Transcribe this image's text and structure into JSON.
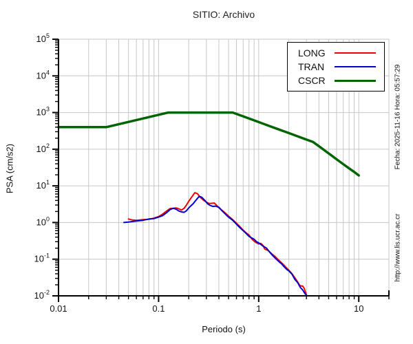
{
  "title": "SITIO: Archivo",
  "side_texts": {
    "fecha": "Fecha: 2025-11-16  Hora: 05:57:29",
    "url": "http://www.lis.ucr.ac.cr"
  },
  "colors": {
    "long": "#ee0000",
    "tran": "#0000cc",
    "cscr": "#006400",
    "grid": "#c6c6c6",
    "axis": "#000000"
  },
  "chart_data": {
    "type": "line",
    "title": "SITIO: Archivo",
    "xlabel": "Periodo (s)",
    "ylabel": "PSA (cm/s2)",
    "xscale": "log",
    "yscale": "log",
    "xlim": [
      0.01,
      20
    ],
    "ylim": [
      0.01,
      100000
    ],
    "grid": true,
    "legend_position": "top-right",
    "x_major_ticks": [
      0.01,
      0.1,
      1,
      10
    ],
    "x_tick_labels": [
      "0.01",
      "0.1",
      "1",
      "10"
    ],
    "y_tick_exponents": [
      -2,
      -1,
      0,
      1,
      2,
      3,
      4,
      5
    ],
    "series": [
      {
        "name": "LONG",
        "color": "#ee0000",
        "width": 2,
        "points": [
          [
            0.05,
            1.25
          ],
          [
            0.055,
            1.17
          ],
          [
            0.06,
            1.15
          ],
          [
            0.07,
            1.2
          ],
          [
            0.08,
            1.22
          ],
          [
            0.09,
            1.32
          ],
          [
            0.1,
            1.45
          ],
          [
            0.11,
            1.7
          ],
          [
            0.12,
            2.05
          ],
          [
            0.13,
            2.4
          ],
          [
            0.14,
            2.45
          ],
          [
            0.15,
            2.5
          ],
          [
            0.16,
            2.35
          ],
          [
            0.17,
            2.2
          ],
          [
            0.18,
            2.45
          ],
          [
            0.19,
            3.0
          ],
          [
            0.2,
            3.8
          ],
          [
            0.215,
            5.0
          ],
          [
            0.23,
            6.5
          ],
          [
            0.245,
            6.1
          ],
          [
            0.26,
            4.9
          ],
          [
            0.28,
            4.1
          ],
          [
            0.3,
            3.6
          ],
          [
            0.32,
            3.3
          ],
          [
            0.34,
            3.35
          ],
          [
            0.36,
            3.4
          ],
          [
            0.38,
            2.95
          ],
          [
            0.4,
            2.55
          ],
          [
            0.43,
            2.15
          ],
          [
            0.46,
            1.85
          ],
          [
            0.5,
            1.5
          ],
          [
            0.55,
            1.2
          ],
          [
            0.6,
            0.95
          ],
          [
            0.65,
            0.77
          ],
          [
            0.7,
            0.62
          ],
          [
            0.75,
            0.52
          ],
          [
            0.8,
            0.46
          ],
          [
            0.85,
            0.36
          ],
          [
            0.9,
            0.31
          ],
          [
            0.95,
            0.28
          ],
          [
            1.0,
            0.26
          ],
          [
            1.05,
            0.27
          ],
          [
            1.1,
            0.24
          ],
          [
            1.15,
            0.19
          ],
          [
            1.25,
            0.17
          ],
          [
            1.35,
            0.14
          ],
          [
            1.45,
            0.12
          ],
          [
            1.55,
            0.1
          ],
          [
            1.65,
            0.085
          ],
          [
            1.75,
            0.073
          ],
          [
            1.85,
            0.062
          ],
          [
            2.0,
            0.05
          ],
          [
            2.15,
            0.04
          ],
          [
            2.3,
            0.031
          ],
          [
            2.45,
            0.024
          ],
          [
            2.55,
            0.02
          ],
          [
            2.65,
            0.0185
          ],
          [
            2.75,
            0.0185
          ],
          [
            2.85,
            0.016
          ],
          [
            3.0,
            0.0105
          ]
        ]
      },
      {
        "name": "TRAN",
        "color": "#0000cc",
        "width": 2,
        "points": [
          [
            0.045,
            1.0
          ],
          [
            0.05,
            1.03
          ],
          [
            0.06,
            1.1
          ],
          [
            0.07,
            1.15
          ],
          [
            0.08,
            1.25
          ],
          [
            0.09,
            1.28
          ],
          [
            0.1,
            1.4
          ],
          [
            0.11,
            1.55
          ],
          [
            0.12,
            1.85
          ],
          [
            0.13,
            2.25
          ],
          [
            0.14,
            2.45
          ],
          [
            0.15,
            2.3
          ],
          [
            0.16,
            2.05
          ],
          [
            0.17,
            1.95
          ],
          [
            0.18,
            1.9
          ],
          [
            0.19,
            2.1
          ],
          [
            0.2,
            2.5
          ],
          [
            0.22,
            3.2
          ],
          [
            0.24,
            4.3
          ],
          [
            0.255,
            5.2
          ],
          [
            0.27,
            4.9
          ],
          [
            0.29,
            4.0
          ],
          [
            0.31,
            3.2
          ],
          [
            0.33,
            2.9
          ],
          [
            0.35,
            2.75
          ],
          [
            0.37,
            2.8
          ],
          [
            0.4,
            2.6
          ],
          [
            0.43,
            2.1
          ],
          [
            0.46,
            1.75
          ],
          [
            0.5,
            1.4
          ],
          [
            0.55,
            1.15
          ],
          [
            0.6,
            0.9
          ],
          [
            0.65,
            0.72
          ],
          [
            0.7,
            0.6
          ],
          [
            0.75,
            0.5
          ],
          [
            0.8,
            0.42
          ],
          [
            0.85,
            0.38
          ],
          [
            0.9,
            0.35
          ],
          [
            0.95,
            0.3
          ],
          [
            1.0,
            0.28
          ],
          [
            1.1,
            0.23
          ],
          [
            1.2,
            0.2
          ],
          [
            1.3,
            0.15
          ],
          [
            1.4,
            0.12
          ],
          [
            1.5,
            0.1
          ],
          [
            1.6,
            0.085
          ],
          [
            1.7,
            0.074
          ],
          [
            1.8,
            0.062
          ],
          [
            1.9,
            0.053
          ],
          [
            2.0,
            0.048
          ],
          [
            2.15,
            0.039
          ],
          [
            2.3,
            0.028
          ],
          [
            2.45,
            0.023
          ],
          [
            2.6,
            0.017
          ],
          [
            2.75,
            0.0145
          ],
          [
            2.9,
            0.0115
          ],
          [
            3.05,
            0.01
          ]
        ]
      },
      {
        "name": "CSCR",
        "color": "#006400",
        "width": 3.5,
        "points": [
          [
            0.01,
            400
          ],
          [
            0.03,
            400
          ],
          [
            0.125,
            1000
          ],
          [
            0.55,
            1000
          ],
          [
            0.7,
            786
          ],
          [
            0.85,
            647
          ],
          [
            1.0,
            550
          ],
          [
            1.25,
            440
          ],
          [
            1.5,
            367
          ],
          [
            1.75,
            314
          ],
          [
            2.0,
            275
          ],
          [
            2.5,
            220
          ],
          [
            3.0,
            183
          ],
          [
            3.5,
            157
          ],
          [
            4.0,
            120
          ],
          [
            4.5,
            95
          ],
          [
            5.0,
            77
          ],
          [
            6.0,
            53
          ],
          [
            7.0,
            39
          ],
          [
            8.0,
            30
          ],
          [
            9.0,
            24
          ],
          [
            10.0,
            19.2
          ]
        ]
      }
    ]
  },
  "legend": {
    "items": [
      {
        "label": "LONG",
        "color": "#ee0000",
        "thickness": 2
      },
      {
        "label": "TRAN",
        "color": "#0000cc",
        "thickness": 2
      },
      {
        "label": "CSCR",
        "color": "#006400",
        "thickness": 3
      }
    ]
  }
}
